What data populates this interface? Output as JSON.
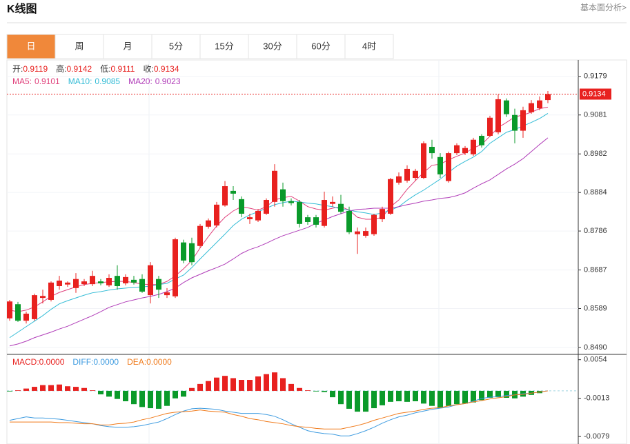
{
  "header": {
    "title": "K线图",
    "link": "基本面分析>"
  },
  "tabs": [
    "日",
    "周",
    "月",
    "5分",
    "15分",
    "30分",
    "60分",
    "4时"
  ],
  "active_tab": "日",
  "chart_data": [
    {
      "type": "candlestick",
      "ohlc_labels": {
        "open": "开:",
        "high": "高:",
        "low": "低:",
        "close": "收:"
      },
      "candles": {
        "up_color": "#e8211f",
        "down_color": "#0a9a2a",
        "open": [
          0.8564,
          0.86,
          0.8558,
          0.8562,
          0.8616,
          0.8611,
          0.8646,
          0.865,
          0.8641,
          0.8651,
          0.8651,
          0.8658,
          0.8648,
          0.8672,
          0.8653,
          0.8662,
          0.8664,
          0.8623,
          0.8664,
          0.8623,
          0.862,
          0.8757,
          0.8755,
          0.8748,
          0.8797,
          0.88,
          0.8851,
          0.8888,
          0.8867,
          0.8816,
          0.8813,
          0.883,
          0.886,
          0.8892,
          0.8862,
          0.886,
          0.8821,
          0.8821,
          0.8799,
          0.8855,
          0.8855,
          0.8837,
          0.8778,
          0.8774,
          0.8778,
          0.8816,
          0.883,
          0.8909,
          0.8914,
          0.8921,
          0.8921,
          0.9,
          0.8974,
          0.8913,
          0.8984,
          0.8984,
          0.8981,
          0.9028,
          0.9028,
          0.9037,
          0.9118,
          0.9081,
          0.9041,
          0.9088,
          0.9098,
          0.9119
        ],
        "high": [
          0.8611,
          0.8606,
          0.8581,
          0.8627,
          0.8637,
          0.8658,
          0.8672,
          0.8658,
          0.8679,
          0.8664,
          0.8685,
          0.8664,
          0.8676,
          0.8699,
          0.8676,
          0.8672,
          0.8676,
          0.8707,
          0.8672,
          0.8641,
          0.8769,
          0.8764,
          0.8769,
          0.8804,
          0.8818,
          0.886,
          0.8913,
          0.89,
          0.8874,
          0.883,
          0.8842,
          0.8869,
          0.8956,
          0.8909,
          0.8869,
          0.8865,
          0.8827,
          0.8827,
          0.8886,
          0.8874,
          0.8878,
          0.8848,
          0.8795,
          0.8795,
          0.883,
          0.8848,
          0.8921,
          0.8935,
          0.8953,
          0.8944,
          0.9014,
          0.9018,
          0.8984,
          0.8988,
          0.9009,
          0.9002,
          0.9023,
          0.9032,
          0.9079,
          0.9133,
          0.9123,
          0.9097,
          0.9102,
          0.9119,
          0.9128,
          0.9142
        ],
        "low": [
          0.8558,
          0.8555,
          0.8551,
          0.8558,
          0.8602,
          0.8607,
          0.8637,
          0.8644,
          0.8629,
          0.8646,
          0.8646,
          0.8648,
          0.8644,
          0.8637,
          0.8648,
          0.865,
          0.8629,
          0.8602,
          0.8616,
          0.8616,
          0.8616,
          0.8704,
          0.8699,
          0.8743,
          0.8792,
          0.8795,
          0.8848,
          0.8865,
          0.8821,
          0.8804,
          0.8809,
          0.8827,
          0.8848,
          0.8848,
          0.8851,
          0.8795,
          0.8802,
          0.8795,
          0.8795,
          0.8848,
          0.883,
          0.8778,
          0.8728,
          0.8769,
          0.8774,
          0.8809,
          0.8827,
          0.8904,
          0.8909,
          0.8914,
          0.8918,
          0.897,
          0.8921,
          0.8909,
          0.8979,
          0.8979,
          0.8977,
          0.8998,
          0.9025,
          0.9032,
          0.9076,
          0.9009,
          0.9023,
          0.9084,
          0.9093,
          0.9111
        ],
        "close": [
          0.8607,
          0.8558,
          0.8576,
          0.8623,
          0.8621,
          0.8655,
          0.866,
          0.8655,
          0.8664,
          0.8658,
          0.8672,
          0.8653,
          0.8667,
          0.8646,
          0.8669,
          0.8655,
          0.8632,
          0.8699,
          0.8637,
          0.863,
          0.8765,
          0.8711,
          0.8707,
          0.8799,
          0.8813,
          0.8853,
          0.89,
          0.8881,
          0.883,
          0.8821,
          0.8837,
          0.8865,
          0.8939,
          0.8862,
          0.8857,
          0.8804,
          0.8809,
          0.8802,
          0.8865,
          0.886,
          0.8835,
          0.8783,
          0.8785,
          0.8786,
          0.8827,
          0.8842,
          0.8918,
          0.8925,
          0.8944,
          0.8939,
          0.9009,
          0.8984,
          0.893,
          0.8984,
          0.9004,
          0.8997,
          0.9018,
          0.9004,
          0.9074,
          0.9121,
          0.9083,
          0.9041,
          0.9093,
          0.9111,
          0.9118,
          0.9134
        ]
      },
      "series": [
        {
          "name": "MA5:",
          "color": "#e0407b",
          "values": [
            0.8585,
            0.8581,
            0.8585,
            0.8593,
            0.8606,
            0.862,
            0.863,
            0.8637,
            0.8644,
            0.865,
            0.8653,
            0.8655,
            0.8657,
            0.8658,
            0.8658,
            0.8655,
            0.8651,
            0.865,
            0.865,
            0.8658,
            0.8672,
            0.869,
            0.8711,
            0.8743,
            0.8772,
            0.8799,
            0.8821,
            0.8837,
            0.8848,
            0.8844,
            0.8839,
            0.8848,
            0.8865,
            0.8871,
            0.8874,
            0.8862,
            0.8848,
            0.8842,
            0.8839,
            0.8844,
            0.8848,
            0.8839,
            0.8821,
            0.8816,
            0.8816,
            0.8821,
            0.8848,
            0.8865,
            0.8892,
            0.8914,
            0.8935,
            0.8953,
            0.8956,
            0.8967,
            0.8976,
            0.8984,
            0.8997,
            0.9006,
            0.9027,
            0.9049,
            0.9062,
            0.9076,
            0.9081,
            0.9088,
            0.9097,
            0.9101
          ]
        },
        {
          "name": "MA10:",
          "color": "#33bcd6",
          "values": [
            0.8515,
            0.8529,
            0.8543,
            0.8557,
            0.8571,
            0.8587,
            0.8601,
            0.8609,
            0.8616,
            0.8623,
            0.8629,
            0.8632,
            0.8636,
            0.8639,
            0.8641,
            0.8643,
            0.8644,
            0.8646,
            0.865,
            0.8653,
            0.8664,
            0.8674,
            0.8693,
            0.8715,
            0.8736,
            0.8757,
            0.8778,
            0.88,
            0.8816,
            0.8827,
            0.8835,
            0.8844,
            0.8853,
            0.8858,
            0.8862,
            0.886,
            0.8857,
            0.8855,
            0.8851,
            0.8848,
            0.8842,
            0.8839,
            0.8835,
            0.8832,
            0.8828,
            0.8832,
            0.8839,
            0.8848,
            0.8864,
            0.8878,
            0.889,
            0.8904,
            0.8918,
            0.8935,
            0.8951,
            0.8963,
            0.8974,
            0.8988,
            0.9009,
            0.9023,
            0.9037,
            0.9044,
            0.9053,
            0.9062,
            0.9072,
            0.9085
          ]
        },
        {
          "name": "MA20:",
          "color": "#b03cb8",
          "values": [
            0.8494,
            0.8499,
            0.8506,
            0.8515,
            0.8522,
            0.8529,
            0.8537,
            0.8544,
            0.8553,
            0.8562,
            0.8571,
            0.8581,
            0.8592,
            0.8599,
            0.8606,
            0.8611,
            0.8616,
            0.862,
            0.8625,
            0.8632,
            0.8641,
            0.8655,
            0.8667,
            0.8676,
            0.8685,
            0.8693,
            0.8702,
            0.8715,
            0.8729,
            0.8739,
            0.8746,
            0.8755,
            0.8765,
            0.8774,
            0.8781,
            0.8788,
            0.8795,
            0.8806,
            0.8814,
            0.8823,
            0.883,
            0.8837,
            0.8841,
            0.8842,
            0.8844,
            0.8844,
            0.8844,
            0.8848,
            0.8853,
            0.8857,
            0.8862,
            0.8865,
            0.8869,
            0.8871,
            0.8876,
            0.8883,
            0.8895,
            0.8906,
            0.8916,
            0.893,
            0.8944,
            0.8956,
            0.897,
            0.8988,
            0.9006,
            0.9023
          ]
        }
      ],
      "ylim": [
        0.8476,
        0.9219
      ],
      "yticks": [
        0.9179,
        0.9081,
        0.8982,
        0.8884,
        0.8786,
        0.8687,
        0.8589,
        {
          "value": 0.849,
          "label": "0.8490"
        }
      ],
      "grid": true
    },
    {
      "type": "macd",
      "bars": {
        "name": "MACD:",
        "up_color": "#e8211f",
        "down_color": "#0a9a2a",
        "values": [
          -0.0001,
          0.0001,
          0.0004,
          0.0007,
          0.001,
          0.001,
          0.0011,
          0.0008,
          0.0007,
          0.0005,
          0.0001,
          -0.0006,
          -0.001,
          -0.0014,
          -0.0018,
          -0.0023,
          -0.0028,
          -0.003,
          -0.0031,
          -0.0026,
          -0.0013,
          -0.001,
          0.0005,
          0.0012,
          0.0017,
          0.0023,
          0.0026,
          0.0022,
          0.0019,
          0.0019,
          0.0025,
          0.0029,
          0.0032,
          0.0022,
          0.0012,
          0.0005,
          0.0001,
          -0.0001,
          -0.0002,
          -0.0011,
          -0.0023,
          -0.0031,
          -0.0036,
          -0.0036,
          -0.003,
          -0.0025,
          -0.0019,
          -0.0018,
          -0.0019,
          -0.0018,
          -0.0022,
          -0.0026,
          -0.003,
          -0.0026,
          -0.0023,
          -0.0022,
          -0.002,
          -0.0016,
          -0.0012,
          -0.0011,
          -0.0012,
          -0.0013,
          -0.001,
          -0.0007,
          -0.0004,
          0
        ],
        "value_labels": [
          null,
          null,
          null,
          null,
          null,
          null,
          null,
          null,
          null,
          null,
          null,
          null,
          null,
          null,
          null,
          null,
          null,
          null,
          null,
          null,
          null,
          null,
          null,
          null,
          null,
          null,
          null,
          null,
          null,
          null,
          null,
          null,
          null,
          null,
          null,
          null,
          null,
          null,
          null,
          null,
          null,
          null,
          null,
          null,
          null,
          null,
          null,
          null,
          null,
          null,
          null,
          null,
          null,
          null,
          null,
          null,
          null,
          null,
          null,
          null,
          null,
          null,
          null,
          null,
          null,
          "0.0000"
        ]
      },
      "series": [
        {
          "name": "DIFF:",
          "color": "#3d9be0",
          "values": [
            -0.0051,
            -0.0048,
            -0.0045,
            -0.0047,
            -0.0047,
            -0.0048,
            -0.0049,
            -0.0051,
            -0.0053,
            -0.0055,
            -0.0057,
            -0.006,
            -0.0062,
            -0.0063,
            -0.0063,
            -0.0062,
            -0.006,
            -0.0057,
            -0.0054,
            -0.0048,
            -0.0041,
            -0.0035,
            -0.0031,
            -0.003,
            -0.0031,
            -0.0032,
            -0.0035,
            -0.0037,
            -0.0039,
            -0.0039,
            -0.0039,
            -0.0041,
            -0.0044,
            -0.005,
            -0.0057,
            -0.0063,
            -0.0069,
            -0.0072,
            -0.0074,
            -0.0075,
            -0.0078,
            -0.0078,
            -0.0074,
            -0.0069,
            -0.0063,
            -0.0056,
            -0.005,
            -0.0045,
            -0.0042,
            -0.0038,
            -0.0035,
            -0.0032,
            -0.003,
            -0.0028,
            -0.0024,
            -0.0022,
            -0.0018,
            -0.0013,
            -0.0011,
            -0.001,
            -0.0008,
            -0.0007,
            -0.0005,
            -0.0004,
            -0.0002,
            0
          ],
          "value_labels": [
            null,
            null,
            null,
            null,
            null,
            null,
            null,
            null,
            null,
            null,
            null,
            null,
            null,
            null,
            null,
            null,
            null,
            null,
            null,
            null,
            null,
            null,
            null,
            null,
            null,
            null,
            null,
            null,
            null,
            null,
            null,
            null,
            null,
            null,
            null,
            null,
            null,
            null,
            null,
            null,
            null,
            null,
            null,
            null,
            null,
            null,
            null,
            null,
            null,
            null,
            null,
            null,
            null,
            null,
            null,
            null,
            null,
            null,
            null,
            null,
            null,
            null,
            null,
            null,
            null,
            "0.0000"
          ]
        },
        {
          "name": "DEA:",
          "color": "#f07a1a",
          "values": [
            -0.0054,
            -0.0054,
            -0.0054,
            -0.0054,
            -0.0054,
            -0.0054,
            -0.0055,
            -0.0055,
            -0.0056,
            -0.0057,
            -0.0057,
            -0.0059,
            -0.0059,
            -0.0057,
            -0.0056,
            -0.0054,
            -0.005,
            -0.0047,
            -0.0043,
            -0.0039,
            -0.0037,
            -0.0036,
            -0.0035,
            -0.0033,
            -0.0035,
            -0.0036,
            -0.0037,
            -0.0041,
            -0.0044,
            -0.0048,
            -0.005,
            -0.0053,
            -0.0055,
            -0.0057,
            -0.006,
            -0.0062,
            -0.0063,
            -0.0065,
            -0.0066,
            -0.0066,
            -0.0066,
            -0.0063,
            -0.006,
            -0.0056,
            -0.0051,
            -0.0047,
            -0.0043,
            -0.0039,
            -0.0037,
            -0.0035,
            -0.0032,
            -0.003,
            -0.0029,
            -0.0026,
            -0.0024,
            -0.0022,
            -0.0019,
            -0.0017,
            -0.0014,
            -0.0012,
            -0.001,
            -0.0007,
            -0.0006,
            -0.0004,
            -0.0002,
            0
          ],
          "value_labels": [
            null,
            null,
            null,
            null,
            null,
            null,
            null,
            null,
            null,
            null,
            null,
            null,
            null,
            null,
            null,
            null,
            null,
            null,
            null,
            null,
            null,
            null,
            null,
            null,
            null,
            null,
            null,
            null,
            null,
            null,
            null,
            null,
            null,
            null,
            null,
            null,
            null,
            null,
            null,
            null,
            null,
            null,
            null,
            null,
            null,
            null,
            null,
            null,
            null,
            null,
            null,
            null,
            null,
            null,
            null,
            null,
            null,
            null,
            null,
            null,
            null,
            null,
            null,
            null,
            null,
            "0.0000"
          ]
        }
      ],
      "ylim": [
        -0.0092,
        0.0062
      ],
      "yticks": [
        0.0054,
        -0.0013,
        -0.0079
      ]
    }
  ]
}
